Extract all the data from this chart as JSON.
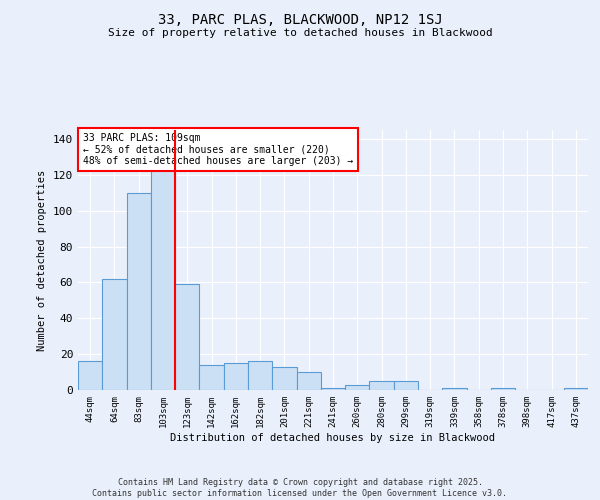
{
  "title1": "33, PARC PLAS, BLACKWOOD, NP12 1SJ",
  "title2": "Size of property relative to detached houses in Blackwood",
  "xlabel": "Distribution of detached houses by size in Blackwood",
  "ylabel": "Number of detached properties",
  "categories": [
    "44sqm",
    "64sqm",
    "83sqm",
    "103sqm",
    "123sqm",
    "142sqm",
    "162sqm",
    "182sqm",
    "201sqm",
    "221sqm",
    "241sqm",
    "260sqm",
    "280sqm",
    "299sqm",
    "319sqm",
    "339sqm",
    "358sqm",
    "378sqm",
    "398sqm",
    "417sqm",
    "437sqm"
  ],
  "values": [
    16,
    62,
    110,
    135,
    59,
    14,
    15,
    16,
    13,
    10,
    1,
    3,
    5,
    5,
    0,
    1,
    0,
    1,
    0,
    0,
    1
  ],
  "bar_color": "#cce0f5",
  "bar_edge_color": "#5b9bd5",
  "red_line_x": 3.5,
  "annotation_text": "33 PARC PLAS: 109sqm\n← 52% of detached houses are smaller (220)\n48% of semi-detached houses are larger (203) →",
  "annotation_box_color": "white",
  "annotation_box_edge": "red",
  "ylim": [
    0,
    145
  ],
  "yticks": [
    0,
    20,
    40,
    60,
    80,
    100,
    120,
    140
  ],
  "background_color": "#eaf0fb",
  "grid_color": "#ffffff",
  "footer_line1": "Contains HM Land Registry data © Crown copyright and database right 2025.",
  "footer_line2": "Contains public sector information licensed under the Open Government Licence v3.0."
}
